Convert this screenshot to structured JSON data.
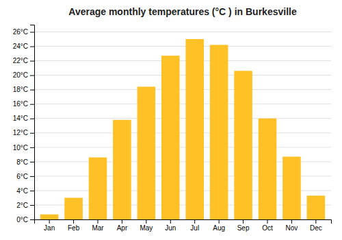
{
  "chart_data": {
    "type": "bar",
    "title": "Average monthly temperatures (°C ) in Burkesville",
    "categories": [
      "Jan",
      "Feb",
      "Mar",
      "Apr",
      "May",
      "Jun",
      "Jul",
      "Aug",
      "Sep",
      "Oct",
      "Nov",
      "Dec"
    ],
    "values": [
      0.7,
      3.0,
      8.6,
      13.8,
      18.4,
      22.7,
      25.0,
      24.2,
      20.6,
      14.0,
      8.7,
      3.3
    ],
    "color": "#FFC125",
    "ylim": [
      0,
      27
    ],
    "yticks": [
      {
        "value": 0,
        "label": "0°C"
      },
      {
        "value": 2,
        "label": "2°C"
      },
      {
        "value": 4,
        "label": "4°C"
      },
      {
        "value": 6,
        "label": "6°C"
      },
      {
        "value": 8,
        "label": "8°C"
      },
      {
        "value": 10,
        "label": "10°C"
      },
      {
        "value": 12,
        "label": "12°C"
      },
      {
        "value": 14,
        "label": "14°C"
      },
      {
        "value": 16,
        "label": "16°C"
      },
      {
        "value": 18,
        "label": "18°C"
      },
      {
        "value": 20,
        "label": "20°C"
      },
      {
        "value": 22,
        "label": "22°C"
      },
      {
        "value": 24,
        "label": "24°C"
      },
      {
        "value": 26,
        "label": "26°C"
      }
    ],
    "grid": true
  }
}
